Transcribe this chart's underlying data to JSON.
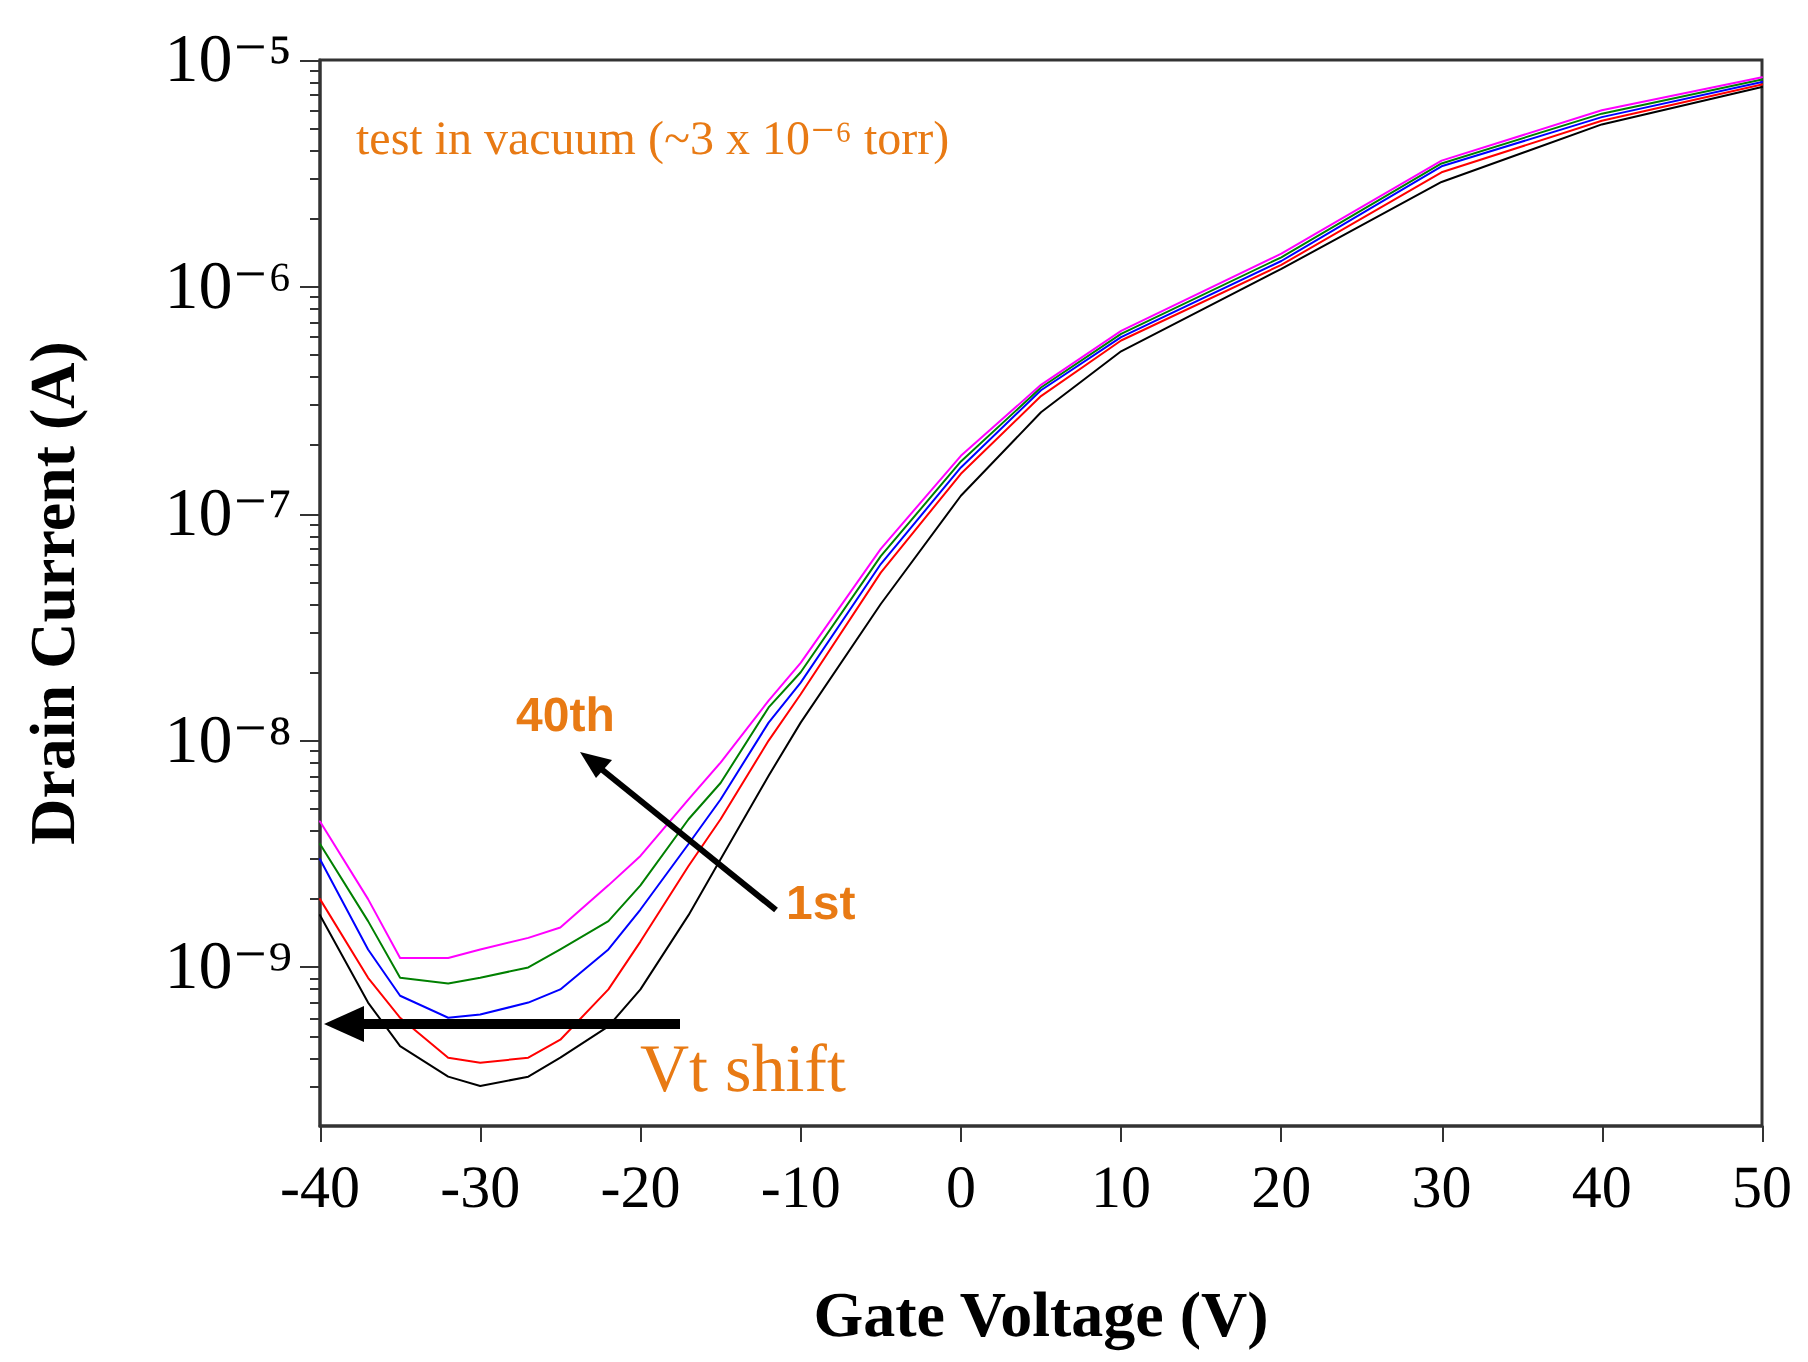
{
  "chart_data": {
    "type": "line",
    "xlabel": "Gate Voltage (V)",
    "ylabel": "Drain Current (A)",
    "x": [
      -40,
      -37,
      -35,
      -32,
      -30,
      -27,
      -25,
      -22,
      -20,
      -17,
      -15,
      -12,
      -10,
      -5,
      0,
      5,
      10,
      20,
      30,
      40,
      50
    ],
    "series": [
      {
        "color": "#000000",
        "values": [
          1.7e-09,
          7e-10,
          4.5e-10,
          3.3e-10,
          3e-10,
          3.3e-10,
          4e-10,
          5.5e-10,
          8e-10,
          1.7e-09,
          3e-09,
          7e-09,
          1.2e-08,
          4e-08,
          1.2e-07,
          2.8e-07,
          5.2e-07,
          1.2e-06,
          2.9e-06,
          5.2e-06,
          7.6e-06
        ]
      },
      {
        "color": "#ff0000",
        "values": [
          2e-09,
          9e-10,
          6e-10,
          4e-10,
          3.8e-10,
          4e-10,
          4.8e-10,
          8e-10,
          1.3e-09,
          2.8e-09,
          4.5e-09,
          1e-08,
          1.6e-08,
          5.5e-08,
          1.5e-07,
          3.3e-07,
          5.8e-07,
          1.25e-06,
          3.2e-06,
          5.4e-06,
          7.8e-06
        ]
      },
      {
        "color": "#0000ff",
        "values": [
          3e-09,
          1.2e-09,
          7.5e-10,
          6e-10,
          6.2e-10,
          7e-10,
          8e-10,
          1.2e-09,
          1.8e-09,
          3.5e-09,
          5.5e-09,
          1.2e-08,
          1.8e-08,
          6e-08,
          1.6e-07,
          3.5e-07,
          6e-07,
          1.3e-06,
          3.4e-06,
          5.6e-06,
          8e-06
        ]
      },
      {
        "color": "#008000",
        "values": [
          3.5e-09,
          1.6e-09,
          9e-10,
          8.5e-10,
          9e-10,
          1e-09,
          1.2e-09,
          1.6e-09,
          2.3e-09,
          4.5e-09,
          6.5e-09,
          1.4e-08,
          2e-08,
          6.5e-08,
          1.7e-07,
          3.6e-07,
          6.2e-07,
          1.35e-06,
          3.5e-06,
          5.8e-06,
          8.2e-06
        ]
      },
      {
        "color": "#ff00ff",
        "values": [
          4.4e-09,
          2e-09,
          1.1e-09,
          1.1e-09,
          1.2e-09,
          1.35e-09,
          1.5e-09,
          2.3e-09,
          3.1e-09,
          5.5e-09,
          8e-09,
          1.5e-08,
          2.2e-08,
          7e-08,
          1.8e-07,
          3.7e-07,
          6.4e-07,
          1.4e-06,
          3.6e-06,
          6e-06,
          8.4e-06
        ]
      }
    ],
    "xlim": [
      -40,
      50
    ],
    "xticks": [
      -40,
      -30,
      -20,
      -10,
      0,
      10,
      20,
      30,
      40,
      50
    ],
    "ylim": [
      2e-10,
      1e-05
    ],
    "yticks": [
      {
        "value": 1e-09,
        "label": "10⁻⁹"
      },
      {
        "value": 1e-08,
        "label": "10⁻⁸"
      },
      {
        "value": 1e-07,
        "label": "10⁻⁷"
      },
      {
        "value": 1e-06,
        "label": "10⁻⁶"
      },
      {
        "value": 1e-05,
        "label": "10⁻⁵"
      }
    ],
    "log": "y",
    "grid": false,
    "marker": "none",
    "line_style": "solid",
    "annotations": [
      "test in vacuum (~3 x 10⁻⁶ torr)",
      "40th",
      "1st",
      "Vt shift"
    ]
  }
}
